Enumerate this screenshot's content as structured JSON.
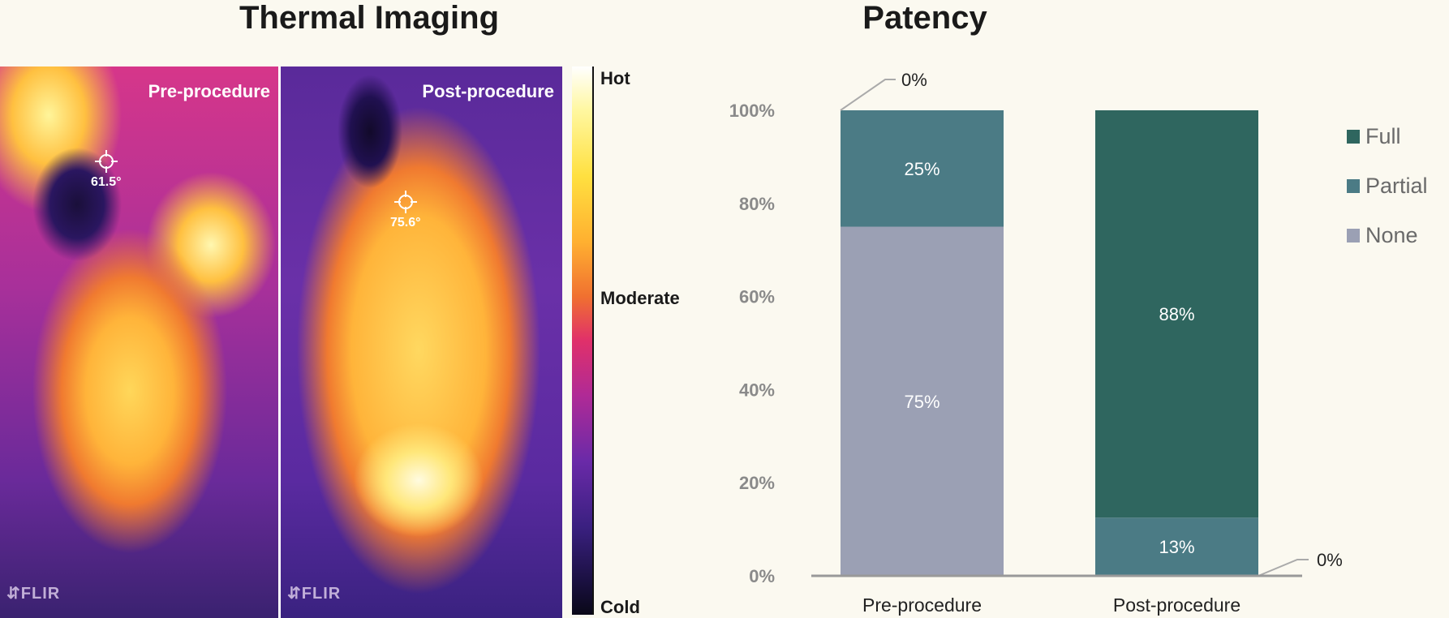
{
  "thermal": {
    "title": "Thermal Imaging",
    "images": [
      {
        "label": "Pre-procedure",
        "temperature": "61.5°",
        "spot_index": "1",
        "brand": "FLIR"
      },
      {
        "label": "Post-procedure",
        "temperature": "75.6°",
        "spot_index": "1",
        "brand": "FLIR"
      }
    ],
    "scale": {
      "hot": "Hot",
      "moderate": "Moderate",
      "cold": "Cold"
    }
  },
  "chart_data": {
    "type": "bar",
    "stacked": true,
    "title": "Patency",
    "categories": [
      "Pre-procedure",
      "Post-procedure"
    ],
    "series": [
      {
        "name": "None",
        "color": "#9ba0b4",
        "values": [
          75,
          0
        ],
        "labels": [
          "75%",
          "0%"
        ]
      },
      {
        "name": "Partial",
        "color": "#4b7b85",
        "values": [
          25,
          12.5
        ],
        "labels": [
          "25%",
          "13%"
        ]
      },
      {
        "name": "Full",
        "color": "#2f665f",
        "values": [
          0,
          87.5
        ],
        "labels": [
          "0%",
          "88%"
        ]
      }
    ],
    "ylim": [
      0,
      100
    ],
    "yticks": [
      "0%",
      "20%",
      "40%",
      "60%",
      "80%",
      "100%"
    ],
    "xlabel": "",
    "ylabel": "",
    "legend": {
      "position": "right",
      "order": [
        "Full",
        "Partial",
        "None"
      ]
    },
    "grid": false
  }
}
